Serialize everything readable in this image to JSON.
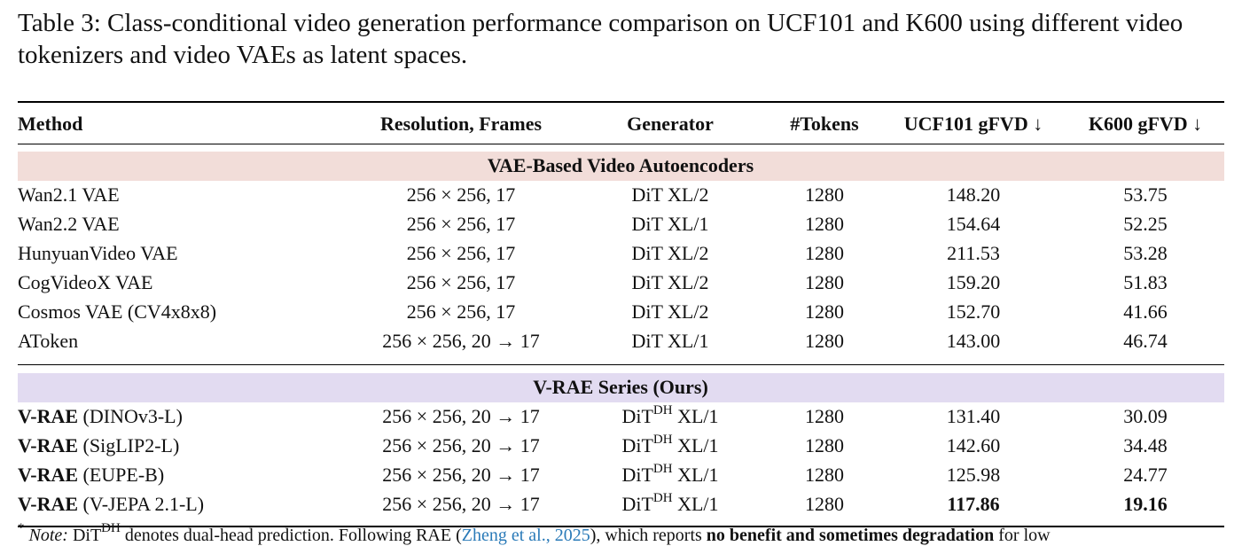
{
  "caption": {
    "label": "Table 3:",
    "text": "Class-conditional video generation performance comparison on UCF101 and K600 using different video tokenizers and video VAEs as latent spaces."
  },
  "table": {
    "header": [
      "Method",
      "Resolution, Frames",
      "Generator",
      "#Tokens",
      "UCF101 gFVD ↓",
      "K600 gFVD ↓"
    ],
    "sections": [
      {
        "title": "VAE-Based Video Autoencoders",
        "rows": [
          [
            {
              "text": "Wan2.1 VAE"
            },
            "256 × 256, 17",
            {
              "base": "DiT XL/2"
            },
            "1280",
            "148.20",
            "53.75"
          ],
          [
            {
              "text": "Wan2.2 VAE"
            },
            "256 × 256, 17",
            {
              "base": "DiT XL/1"
            },
            "1280",
            "154.64",
            "52.25"
          ],
          [
            {
              "text": "HunyuanVideo VAE"
            },
            "256 × 256, 17",
            {
              "base": "DiT XL/2"
            },
            "1280",
            "211.53",
            "53.28"
          ],
          [
            {
              "text": "CogVideoX VAE"
            },
            "256 × 256, 17",
            {
              "base": "DiT XL/2"
            },
            "1280",
            "159.20",
            "51.83"
          ],
          [
            {
              "text": "Cosmos VAE (CV4x8x8)"
            },
            "256 × 256, 17",
            {
              "base": "DiT XL/2"
            },
            "1280",
            "152.70",
            "41.66"
          ],
          [
            {
              "text": "AToken"
            },
            "256 × 256, 20 → 17",
            {
              "base": "DiT XL/1"
            },
            "1280",
            "143.00",
            "46.74"
          ]
        ]
      },
      {
        "title": "V-RAE Series (Ours)",
        "rows": [
          [
            {
              "bold": "V-RAE",
              "text": " (DINOv3-L)"
            },
            "256 × 256, 20 → 17",
            {
              "base": "DiT",
              "sup": "DH",
              "rest": " XL/1"
            },
            "1280",
            "131.40",
            "30.09"
          ],
          [
            {
              "bold": "V-RAE",
              "text": " (SigLIP2-L)"
            },
            "256 × 256, 20 → 17",
            {
              "base": "DiT",
              "sup": "DH",
              "rest": " XL/1"
            },
            "1280",
            "142.60",
            "34.48"
          ],
          [
            {
              "bold": "V-RAE",
              "text": " (EUPE-B)"
            },
            "256 × 256, 20 → 17",
            {
              "base": "DiT",
              "sup": "DH",
              "rest": " XL/1"
            },
            "1280",
            "125.98",
            "24.77"
          ],
          [
            {
              "bold": "V-RAE",
              "text": " (V-JEPA 2.1-L)"
            },
            "256 × 256, 20 → 17",
            {
              "base": "DiT",
              "sup": "DH",
              "rest": " XL/1"
            },
            "1280",
            "117.86",
            "19.16"
          ]
        ]
      }
    ]
  },
  "footnote": {
    "mark": "*",
    "note": "Note:",
    "base": "DiT",
    "sup": "DH",
    "text1": " denotes dual-head prediction. Following RAE (",
    "link": "Zheng et al., 2025",
    "text2": "), which reports ",
    "bold": "no benefit and sometimes degradation",
    "text3": " for low"
  }
}
